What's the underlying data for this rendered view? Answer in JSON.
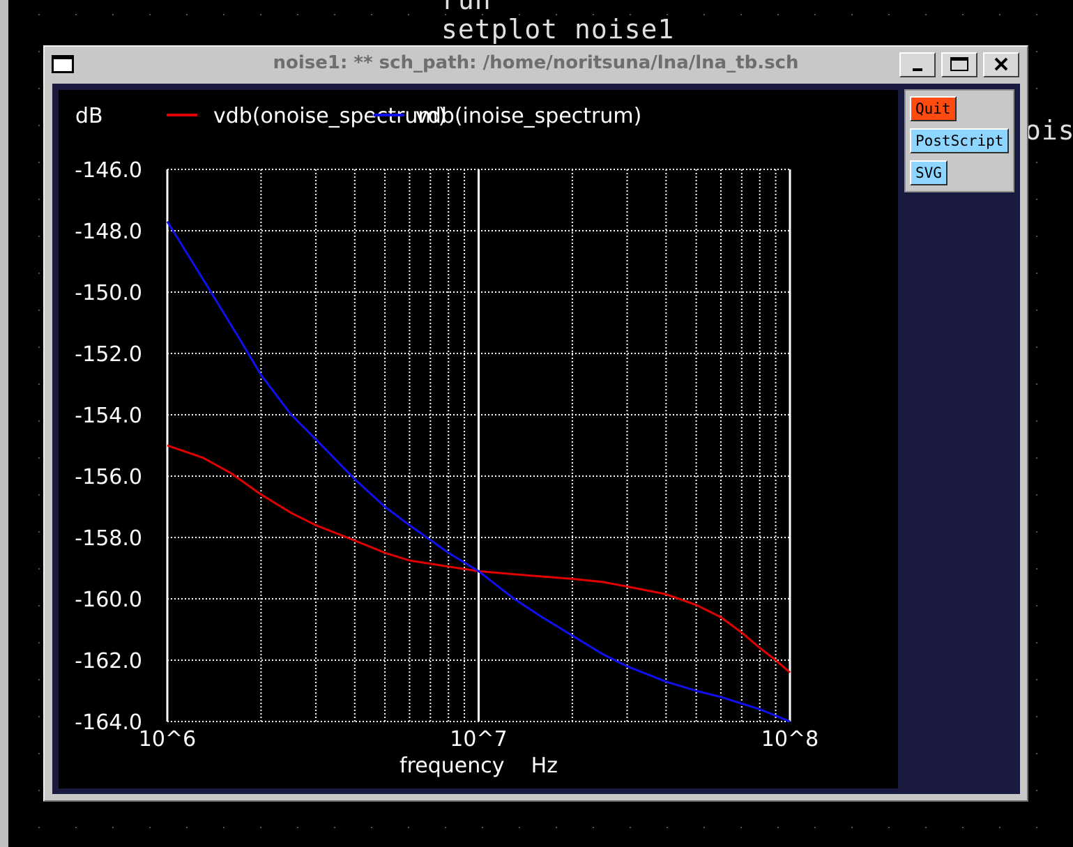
{
  "terminal": {
    "line1": "run",
    "line2": "setplot noise1",
    "right_fragment": "ois"
  },
  "window": {
    "title": "noise1: ** sch_path: /home/noritsuna/lna/lna_tb.sch",
    "minimize_icon": "minimize-icon",
    "maximize_icon": "maximize-icon",
    "close_icon": "close-icon"
  },
  "buttons": {
    "quit": "Quit",
    "postscript": "PostScript",
    "svg": "SVG"
  },
  "colors": {
    "quit_bg": "#ff4a10",
    "button_bg": "#8ed6ff",
    "series1": "#e00000",
    "series2": "#1010ee"
  },
  "chart_data": {
    "type": "line",
    "ylabel": "dB",
    "xlabel": "frequency    Hz",
    "x_scale": "log",
    "xlim": [
      1000000,
      100000000
    ],
    "ylim": [
      -164,
      -146
    ],
    "yticks": [
      -146,
      -148,
      -150,
      -152,
      -154,
      -156,
      -158,
      -160,
      -162,
      -164
    ],
    "ytick_labels": [
      "-146.0",
      "-148.0",
      "-150.0",
      "-152.0",
      "-154.0",
      "-156.0",
      "-158.0",
      "-160.0",
      "-162.0",
      "-164.0"
    ],
    "xtick_labels": [
      "10^6",
      "10^7",
      "10^8"
    ],
    "grid": true,
    "series": [
      {
        "name": "vdb(onoise_spectrum)",
        "color": "#e00000",
        "x": [
          1000000,
          1300000,
          1600000,
          2000000,
          2500000,
          3000000,
          4000000,
          5000000,
          6000000,
          8000000,
          10000000,
          15000000,
          20000000,
          25000000,
          30000000,
          40000000,
          50000000,
          60000000,
          70000000,
          80000000,
          90000000,
          100000000
        ],
        "y": [
          -155.0,
          -155.4,
          -155.9,
          -156.6,
          -157.2,
          -157.6,
          -158.1,
          -158.5,
          -158.75,
          -158.95,
          -159.1,
          -159.25,
          -159.35,
          -159.45,
          -159.6,
          -159.85,
          -160.2,
          -160.6,
          -161.1,
          -161.6,
          -162.0,
          -162.4
        ]
      },
      {
        "name": "vdb(inoise_spectrum)",
        "color": "#1010ee",
        "x": [
          1000000,
          1200000,
          1400000,
          1700000,
          2000000,
          2500000,
          3000000,
          4000000,
          5000000,
          6000000,
          8000000,
          10000000,
          13000000,
          16000000,
          20000000,
          25000000,
          30000000,
          40000000,
          50000000,
          60000000,
          80000000,
          100000000
        ],
        "y": [
          -147.7,
          -149.0,
          -150.1,
          -151.5,
          -152.7,
          -154.0,
          -154.8,
          -156.1,
          -157.0,
          -157.6,
          -158.5,
          -159.1,
          -160.0,
          -160.6,
          -161.2,
          -161.8,
          -162.2,
          -162.7,
          -163.0,
          -163.2,
          -163.6,
          -164.0
        ]
      }
    ]
  }
}
